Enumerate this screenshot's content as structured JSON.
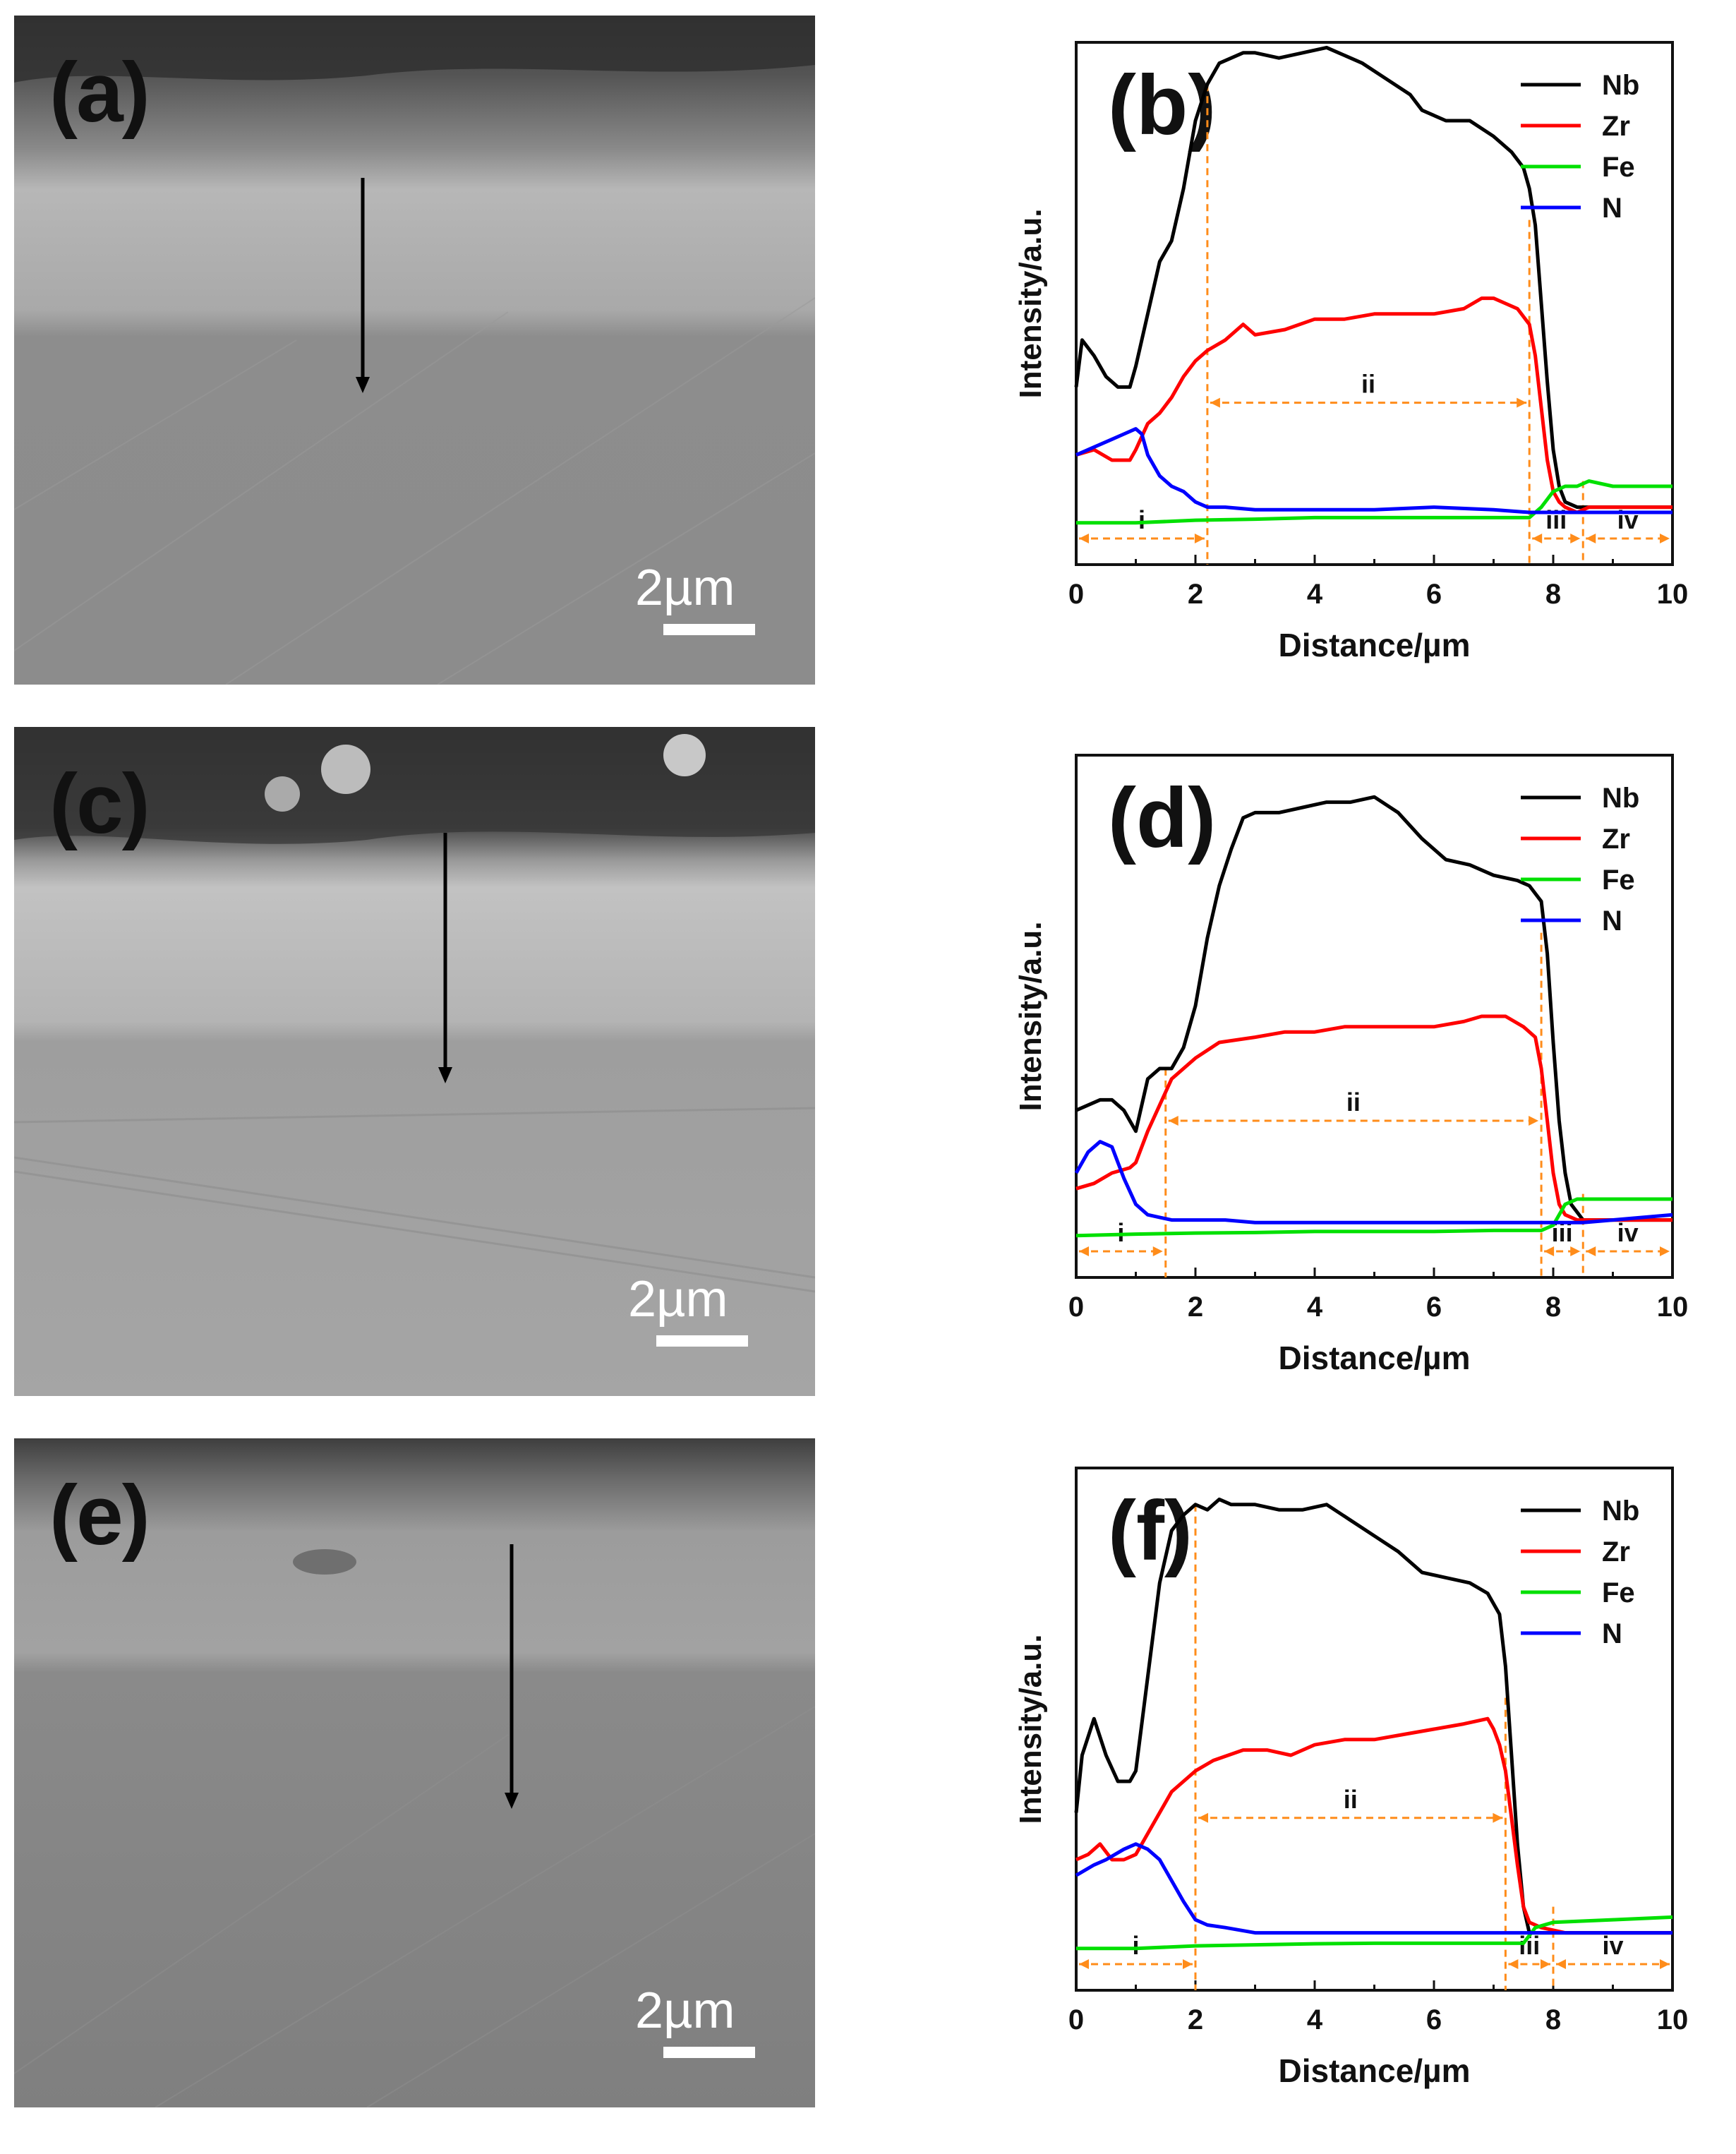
{
  "figure": {
    "panels": [
      {
        "id": "a",
        "label": "(a)",
        "scale_bar": "2µm"
      },
      {
        "id": "c",
        "label": "(c)",
        "scale_bar": "2µm"
      },
      {
        "id": "e",
        "label": "(e)",
        "scale_bar": "2µm"
      }
    ]
  },
  "colors": {
    "Nb": "#000000",
    "Zr": "#ff0000",
    "Fe": "#00e000",
    "N": "#0000ff",
    "guide": "#ff8c1a"
  },
  "chart_data": [
    {
      "type": "line",
      "label": "(b)",
      "xlabel": "Distance/µm",
      "ylabel": "Intensity/a.u.",
      "xlim": [
        0,
        10
      ],
      "ylim": [
        0,
        100
      ],
      "xticks": [
        0,
        2,
        4,
        6,
        8,
        10
      ],
      "legend": [
        "Nb",
        "Zr",
        "Fe",
        "N"
      ],
      "legend_position": "top-right",
      "boundaries": [
        2.2,
        7.6,
        8.5
      ],
      "regions": [
        {
          "name": "i",
          "from": 0,
          "to": 2.2
        },
        {
          "name": "ii",
          "from": 2.2,
          "to": 7.6
        },
        {
          "name": "iii",
          "from": 7.6,
          "to": 8.5
        },
        {
          "name": "iv",
          "from": 8.5,
          "to": 10
        }
      ],
      "series": [
        {
          "name": "Nb",
          "x": [
            0,
            0.1,
            0.3,
            0.5,
            0.7,
            0.9,
            1.0,
            1.2,
            1.4,
            1.6,
            1.8,
            2.0,
            2.2,
            2.4,
            2.6,
            2.8,
            3.0,
            3.4,
            3.8,
            4.2,
            4.4,
            4.8,
            5.2,
            5.6,
            5.8,
            6.2,
            6.6,
            7.0,
            7.3,
            7.5,
            7.6,
            7.7,
            7.8,
            7.9,
            8.0,
            8.1,
            8.2,
            8.4,
            8.6,
            9.0,
            9.4,
            9.8,
            10
          ],
          "y": [
            34,
            43,
            40,
            36,
            34,
            34,
            38,
            48,
            58,
            62,
            72,
            85,
            92,
            96,
            97,
            98,
            98,
            97,
            98,
            99,
            98,
            96,
            93,
            90,
            87,
            85,
            85,
            82,
            79,
            76,
            72,
            65,
            50,
            35,
            22,
            15,
            12,
            11,
            11,
            11,
            11,
            11,
            11
          ]
        },
        {
          "name": "Zr",
          "x": [
            0,
            0.3,
            0.6,
            0.9,
            1.0,
            1.2,
            1.4,
            1.6,
            1.8,
            2.0,
            2.2,
            2.5,
            2.8,
            3.0,
            3.5,
            4.0,
            4.5,
            5.0,
            5.5,
            6.0,
            6.5,
            6.8,
            7.0,
            7.2,
            7.4,
            7.6,
            7.7,
            7.8,
            7.9,
            8.0,
            8.1,
            8.2,
            8.4,
            8.6,
            9.0,
            9.5,
            10
          ],
          "y": [
            21,
            22,
            20,
            20,
            22,
            27,
            29,
            32,
            36,
            39,
            41,
            43,
            46,
            44,
            45,
            47,
            47,
            48,
            48,
            48,
            49,
            51,
            51,
            50,
            49,
            46,
            40,
            30,
            20,
            14,
            12,
            11,
            10,
            11,
            11,
            11,
            11
          ]
        },
        {
          "name": "Fe",
          "x": [
            0,
            1,
            2,
            3,
            4,
            5,
            6,
            7,
            7.6,
            7.8,
            8.0,
            8.2,
            8.4,
            8.6,
            9.0,
            9.5,
            10
          ],
          "y": [
            8,
            8,
            8.5,
            8.7,
            9,
            9,
            9,
            9,
            9,
            11,
            14,
            15,
            15,
            16,
            15,
            15,
            15
          ]
        },
        {
          "name": "N",
          "x": [
            0,
            0.2,
            0.4,
            0.6,
            0.8,
            1.0,
            1.1,
            1.2,
            1.4,
            1.6,
            1.8,
            2.0,
            2.2,
            2.5,
            3,
            4,
            5,
            6,
            7,
            7.6,
            8,
            8.5,
            9,
            9.5,
            10
          ],
          "y": [
            21,
            22,
            23,
            24,
            25,
            26,
            25,
            21,
            17,
            15,
            14,
            12,
            11,
            11,
            10.5,
            10.5,
            10.5,
            11,
            10.5,
            10,
            10,
            10,
            10,
            10,
            10
          ]
        }
      ]
    },
    {
      "type": "line",
      "label": "(d)",
      "xlabel": "Distance/µm",
      "ylabel": "Intensity/a.u.",
      "xlim": [
        0,
        10
      ],
      "ylim": [
        0,
        100
      ],
      "xticks": [
        0,
        2,
        4,
        6,
        8,
        10
      ],
      "legend": [
        "Nb",
        "Zr",
        "Fe",
        "N"
      ],
      "legend_position": "top-right",
      "boundaries": [
        1.5,
        7.8,
        8.5
      ],
      "regions": [
        {
          "name": "i",
          "from": 0,
          "to": 1.5
        },
        {
          "name": "ii",
          "from": 1.5,
          "to": 7.8
        },
        {
          "name": "iii",
          "from": 7.8,
          "to": 8.5
        },
        {
          "name": "iv",
          "from": 8.5,
          "to": 10
        }
      ],
      "series": [
        {
          "name": "Nb",
          "x": [
            0,
            0.2,
            0.4,
            0.6,
            0.8,
            1.0,
            1.2,
            1.4,
            1.6,
            1.8,
            2.0,
            2.2,
            2.4,
            2.6,
            2.8,
            3.0,
            3.4,
            3.8,
            4.2,
            4.6,
            5.0,
            5.4,
            5.8,
            6.2,
            6.6,
            7.0,
            7.4,
            7.6,
            7.8,
            7.9,
            8.0,
            8.1,
            8.2,
            8.3,
            8.5,
            9,
            10
          ],
          "y": [
            32,
            33,
            34,
            34,
            32,
            28,
            38,
            40,
            40,
            44,
            52,
            65,
            75,
            82,
            88,
            89,
            89,
            90,
            91,
            91,
            92,
            89,
            84,
            80,
            79,
            77,
            76,
            75,
            72,
            62,
            45,
            30,
            20,
            14,
            11,
            11,
            11
          ]
        },
        {
          "name": "Zr",
          "x": [
            0,
            0.3,
            0.6,
            0.9,
            1.0,
            1.2,
            1.4,
            1.6,
            1.8,
            2.0,
            2.4,
            3.0,
            3.5,
            4.0,
            4.5,
            5.0,
            5.5,
            6.0,
            6.5,
            6.8,
            7.2,
            7.5,
            7.7,
            7.8,
            7.9,
            8.0,
            8.1,
            8.2,
            8.4,
            8.6,
            9,
            10
          ],
          "y": [
            17,
            18,
            20,
            21,
            22,
            28,
            33,
            38,
            40,
            42,
            45,
            46,
            47,
            47,
            48,
            48,
            48,
            48,
            49,
            50,
            50,
            48,
            46,
            40,
            30,
            20,
            14,
            12,
            11,
            11,
            11,
            11
          ]
        },
        {
          "name": "Fe",
          "x": [
            0,
            1,
            2,
            3,
            4,
            5,
            6,
            7,
            7.8,
            8.0,
            8.2,
            8.4,
            8.6,
            9,
            10
          ],
          "y": [
            8,
            8.3,
            8.5,
            8.6,
            8.8,
            8.8,
            8.8,
            9,
            9,
            10,
            14,
            15,
            15,
            15,
            15
          ]
        },
        {
          "name": "N",
          "x": [
            0,
            0.2,
            0.4,
            0.6,
            0.8,
            1.0,
            1.2,
            1.4,
            1.6,
            2.0,
            2.5,
            3,
            4,
            5,
            6,
            7,
            7.8,
            8.5,
            9,
            10
          ],
          "y": [
            20,
            24,
            26,
            25,
            19,
            14,
            12,
            11.5,
            11,
            11,
            11,
            10.5,
            10.5,
            10.5,
            10.5,
            10.5,
            10.5,
            10.5,
            11,
            12
          ]
        }
      ]
    },
    {
      "type": "line",
      "label": "(f)",
      "xlabel": "Distance/µm",
      "ylabel": "Intensity/a.u.",
      "xlim": [
        0,
        10
      ],
      "ylim": [
        0,
        100
      ],
      "xticks": [
        0,
        2,
        4,
        6,
        8,
        10
      ],
      "legend": [
        "Nb",
        "Zr",
        "Fe",
        "N"
      ],
      "legend_position": "top-right",
      "boundaries": [
        2.0,
        7.2,
        8.0
      ],
      "regions": [
        {
          "name": "i",
          "from": 0,
          "to": 2.0
        },
        {
          "name": "ii",
          "from": 2.0,
          "to": 7.2
        },
        {
          "name": "iii",
          "from": 7.2,
          "to": 8.0
        },
        {
          "name": "iv",
          "from": 8.0,
          "to": 10
        }
      ],
      "series": [
        {
          "name": "Nb",
          "x": [
            0,
            0.1,
            0.3,
            0.5,
            0.7,
            0.9,
            1.0,
            1.2,
            1.4,
            1.6,
            1.8,
            2.0,
            2.2,
            2.4,
            2.6,
            2.8,
            3.0,
            3.4,
            3.8,
            4.2,
            4.6,
            5.0,
            5.4,
            5.8,
            6.2,
            6.6,
            6.9,
            7.1,
            7.2,
            7.3,
            7.4,
            7.5,
            7.6,
            7.8,
            8.0,
            9,
            10
          ],
          "y": [
            34,
            45,
            52,
            45,
            40,
            40,
            42,
            60,
            78,
            88,
            91,
            93,
            92,
            94,
            93,
            93,
            93,
            92,
            92,
            93,
            90,
            87,
            84,
            80,
            79,
            78,
            76,
            72,
            62,
            45,
            28,
            16,
            11,
            11,
            11,
            11,
            11
          ]
        },
        {
          "name": "Zr",
          "x": [
            0,
            0.2,
            0.4,
            0.6,
            0.8,
            1.0,
            1.2,
            1.4,
            1.6,
            1.8,
            2.0,
            2.3,
            2.8,
            3.2,
            3.6,
            4.0,
            4.5,
            5.0,
            5.5,
            6.0,
            6.5,
            6.9,
            7.0,
            7.1,
            7.2,
            7.3,
            7.4,
            7.5,
            7.6,
            7.8,
            8.2,
            9,
            10
          ],
          "y": [
            25,
            26,
            28,
            25,
            25,
            26,
            30,
            34,
            38,
            40,
            42,
            44,
            46,
            46,
            45,
            47,
            48,
            48,
            49,
            50,
            51,
            52,
            50,
            47,
            42,
            33,
            24,
            16,
            13,
            12,
            11,
            11,
            11
          ]
        },
        {
          "name": "Fe",
          "x": [
            0,
            1,
            2,
            3,
            4,
            5,
            6,
            7,
            7.5,
            7.7,
            8,
            9,
            10
          ],
          "y": [
            8,
            8,
            8.5,
            8.7,
            8.9,
            9,
            9,
            9,
            9,
            12,
            13,
            13.5,
            14
          ]
        },
        {
          "name": "N",
          "x": [
            0,
            0.3,
            0.5,
            0.8,
            1.0,
            1.2,
            1.4,
            1.6,
            1.8,
            2.0,
            2.2,
            2.5,
            3,
            4,
            5,
            6,
            7,
            7.5,
            8,
            9,
            10
          ],
          "y": [
            22,
            24,
            25,
            27,
            28,
            27,
            25,
            21,
            17,
            13.5,
            12.5,
            12,
            11,
            11,
            11,
            11,
            11,
            11,
            11,
            11,
            11
          ]
        }
      ]
    }
  ]
}
